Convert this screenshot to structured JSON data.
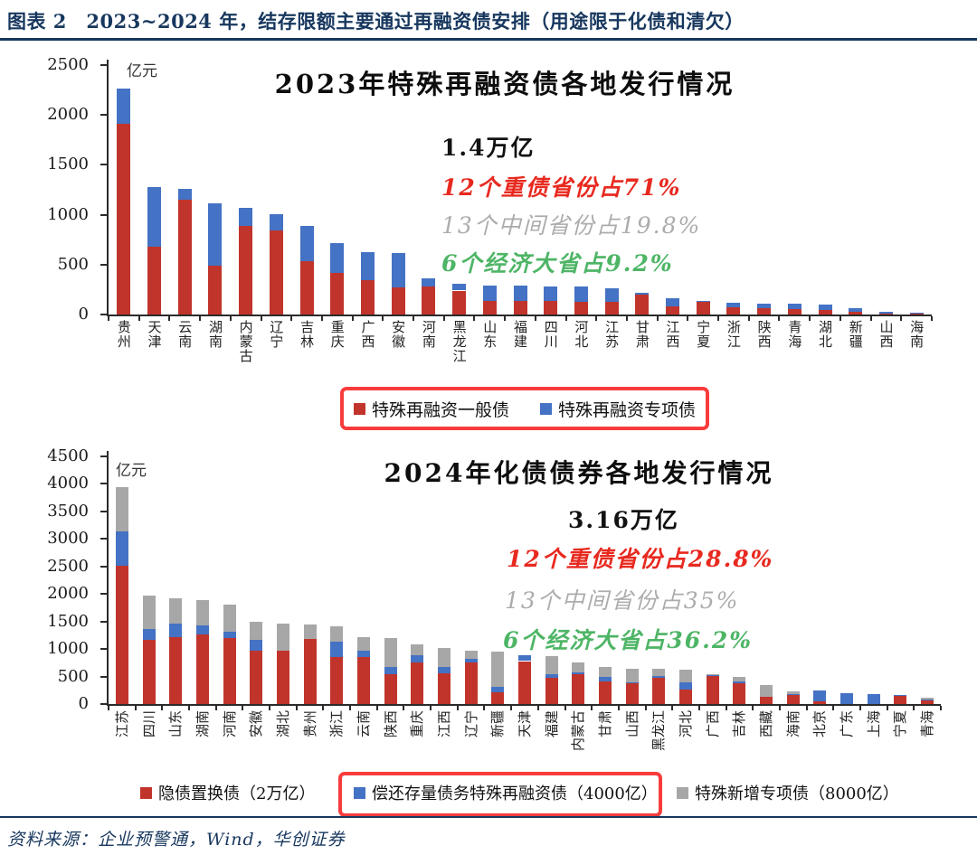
{
  "header": {
    "title": "图表 2　2023~2024 年，结存限额主要通过再融资债安排（用途限于化债和清欠）"
  },
  "source": {
    "text": "资料来源：企业预警通，Wind，华创证券"
  },
  "colors": {
    "bar_red": "#C1342B",
    "bar_blue": "#4472C4",
    "bar_gray": "#A7A7A7",
    "navy": "#17375E",
    "annotation_red": "#E8291F",
    "annotation_gray": "#ACACAC",
    "annotation_green": "#4EB566",
    "highlight_box": "#F83C3C"
  },
  "chart_data": [
    {
      "type": "bar",
      "stacked": true,
      "title": "2023年特殊再融资债各地发行情况",
      "unit": "亿元",
      "ylim": [
        0,
        2500
      ],
      "ytick_step": 500,
      "grid": false,
      "legend_position": "bottom",
      "legend_box_highlighted": true,
      "annotations": [
        {
          "text": "1.4万亿",
          "color": "#121212"
        },
        {
          "text": "12个重债省份占71%",
          "color": "#E8291F"
        },
        {
          "text": "13个中间省份占19.8%",
          "color": "#ACACAC"
        },
        {
          "text": "6个经济大省占9.2%",
          "color": "#4EB566"
        }
      ],
      "categories": [
        "贵州",
        "天津",
        "云南",
        "湖南",
        "内蒙古",
        "辽宁",
        "吉林",
        "重庆",
        "广西",
        "安徽",
        "河南",
        "黑龙江",
        "山东",
        "福建",
        "四川",
        "河北",
        "江苏",
        "甘肃",
        "江西",
        "宁夏",
        "浙江",
        "陕西",
        "青海",
        "湖北",
        "新疆",
        "山西",
        "海南"
      ],
      "series": [
        {
          "name": "特殊再融资一般债",
          "color_key": "bar_red",
          "values": [
            1910,
            680,
            1150,
            490,
            890,
            840,
            530,
            415,
            345,
            270,
            285,
            240,
            140,
            135,
            135,
            130,
            125,
            200,
            80,
            130,
            70,
            65,
            50,
            45,
            25,
            10,
            5
          ]
        },
        {
          "name": "特殊再融资专项债",
          "color_key": "bar_blue",
          "values": [
            355,
            600,
            105,
            625,
            175,
            165,
            360,
            305,
            280,
            350,
            75,
            65,
            150,
            155,
            150,
            155,
            140,
            20,
            85,
            10,
            45,
            45,
            55,
            55,
            35,
            20,
            15
          ]
        }
      ]
    },
    {
      "type": "bar",
      "stacked": true,
      "title": "2024年化债债券各地发行情况",
      "unit": "亿元",
      "ylim": [
        0,
        4500
      ],
      "ytick_step": 500,
      "grid": false,
      "legend_position": "bottom",
      "legend_box_highlighted": false,
      "annotations": [
        {
          "text": "3.16万亿",
          "color": "#121212"
        },
        {
          "text": "12个重债省份占28.8%",
          "color": "#E8291F"
        },
        {
          "text": "13个中间省份占35%",
          "color": "#ACACAC"
        },
        {
          "text": "6个经济大省占36.2%",
          "color": "#4EB566"
        }
      ],
      "categories": [
        "江苏",
        "四川",
        "山东",
        "湖南",
        "河南",
        "安徽",
        "湖北",
        "贵州",
        "浙江",
        "云南",
        "陕西",
        "重庆",
        "江西",
        "辽宁",
        "新疆",
        "天津",
        "福建",
        "内蒙古",
        "甘肃",
        "山西",
        "黑龙江",
        "河北",
        "广西",
        "吉林",
        "西藏",
        "海南",
        "北京",
        "广东",
        "上海",
        "宁夏",
        "青海"
      ],
      "series": [
        {
          "name": "隐债置换债（2万亿）",
          "color_key": "bar_red",
          "legend_highlighted": false,
          "values": [
            2520,
            1165,
            1220,
            1260,
            1200,
            965,
            965,
            1180,
            850,
            855,
            535,
            755,
            565,
            760,
            220,
            780,
            480,
            545,
            415,
            385,
            470,
            265,
            510,
            380,
            125,
            165,
            50,
            0,
            0,
            150,
            80
          ]
        },
        {
          "name": "偿还存量债务特殊再融资债（4000亿）",
          "color_key": "bar_blue",
          "legend_highlighted": true,
          "values": [
            610,
            200,
            245,
            165,
            115,
            200,
            0,
            0,
            290,
            120,
            140,
            135,
            110,
            60,
            90,
            110,
            55,
            25,
            75,
            15,
            40,
            135,
            15,
            30,
            0,
            20,
            200,
            200,
            180,
            15,
            10
          ]
        },
        {
          "name": "特殊新增专项债（8000亿）",
          "color_key": "bar_gray",
          "legend_highlighted": false,
          "values": [
            810,
            600,
            450,
            465,
            490,
            330,
            500,
            270,
            280,
            245,
            520,
            200,
            340,
            155,
            650,
            0,
            340,
            185,
            180,
            235,
            125,
            220,
            10,
            80,
            220,
            50,
            0,
            0,
            0,
            0,
            20
          ]
        }
      ]
    }
  ]
}
